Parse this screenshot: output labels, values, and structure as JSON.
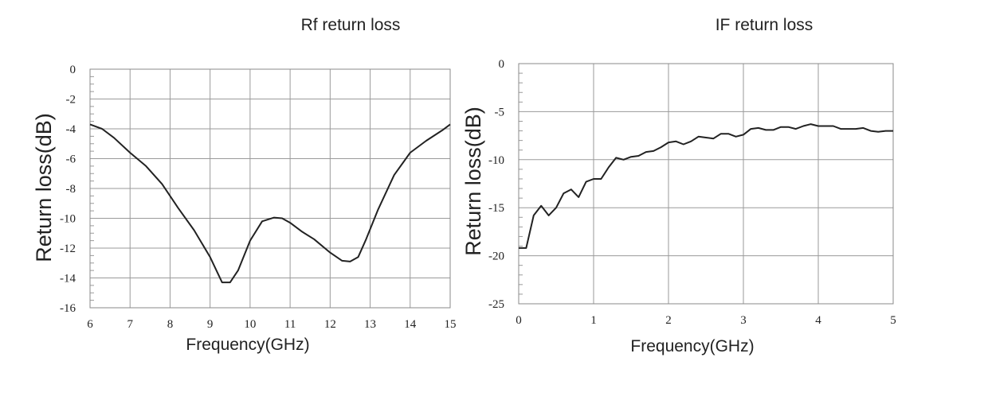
{
  "chart_data": [
    {
      "type": "line",
      "title": "Rf return loss",
      "xlabel": "Frequency(GHz)",
      "ylabel": "Return loss(dB)",
      "xlim": [
        6,
        15
      ],
      "ylim": [
        -16,
        0
      ],
      "xticks": [
        6,
        7,
        8,
        9,
        10,
        11,
        12,
        13,
        14,
        15
      ],
      "yticks": [
        0,
        -2,
        -4,
        -6,
        -8,
        -10,
        -12,
        -14,
        -16
      ],
      "grid": true,
      "series": [
        {
          "x": [
            6.0,
            6.3,
            6.6,
            7.0,
            7.4,
            7.8,
            8.2,
            8.6,
            9.0,
            9.3,
            9.5,
            9.7,
            10.0,
            10.3,
            10.6,
            10.8,
            11.0,
            11.3,
            11.6,
            12.0,
            12.3,
            12.5,
            12.7,
            12.9,
            13.2,
            13.6,
            14.0,
            14.4,
            14.8,
            15.0
          ],
          "y": [
            -3.7,
            -4.0,
            -4.6,
            -5.6,
            -6.5,
            -7.7,
            -9.3,
            -10.8,
            -12.6,
            -14.3,
            -14.3,
            -13.5,
            -11.5,
            -10.2,
            -9.95,
            -10.0,
            -10.3,
            -10.9,
            -11.4,
            -12.3,
            -12.85,
            -12.9,
            -12.6,
            -11.4,
            -9.4,
            -7.1,
            -5.6,
            -4.8,
            -4.1,
            -3.7
          ]
        }
      ]
    },
    {
      "type": "line",
      "title": "IF return loss",
      "xlabel": "Frequency(GHz)",
      "ylabel": "Return loss(dB)",
      "xlim": [
        0,
        5
      ],
      "ylim": [
        -25,
        0
      ],
      "xticks": [
        0,
        1,
        2,
        3,
        4,
        5
      ],
      "yticks": [
        0,
        -5,
        -10,
        -15,
        -20,
        -25
      ],
      "grid": true,
      "series": [
        {
          "x": [
            0.0,
            0.1,
            0.2,
            0.3,
            0.4,
            0.5,
            0.6,
            0.7,
            0.8,
            0.9,
            1.0,
            1.1,
            1.2,
            1.3,
            1.4,
            1.5,
            1.6,
            1.7,
            1.8,
            1.9,
            2.0,
            2.1,
            2.2,
            2.3,
            2.4,
            2.5,
            2.6,
            2.7,
            2.8,
            2.9,
            3.0,
            3.1,
            3.2,
            3.3,
            3.4,
            3.5,
            3.6,
            3.7,
            3.8,
            3.9,
            4.0,
            4.1,
            4.2,
            4.3,
            4.4,
            4.5,
            4.6,
            4.7,
            4.8,
            4.9,
            5.0
          ],
          "y": [
            -19.2,
            -19.2,
            -15.8,
            -14.8,
            -15.8,
            -15.0,
            -13.5,
            -13.1,
            -13.9,
            -12.3,
            -12.0,
            -12.0,
            -10.8,
            -9.8,
            -10.0,
            -9.7,
            -9.6,
            -9.2,
            -9.1,
            -8.7,
            -8.2,
            -8.1,
            -8.4,
            -8.1,
            -7.6,
            -7.7,
            -7.8,
            -7.3,
            -7.3,
            -7.6,
            -7.4,
            -6.8,
            -6.7,
            -6.9,
            -6.9,
            -6.6,
            -6.6,
            -6.8,
            -6.5,
            -6.3,
            -6.5,
            -6.5,
            -6.5,
            -6.8,
            -6.8,
            -6.8,
            -6.7,
            -7.0,
            -7.1,
            -7.0,
            -7.0
          ]
        }
      ]
    }
  ]
}
